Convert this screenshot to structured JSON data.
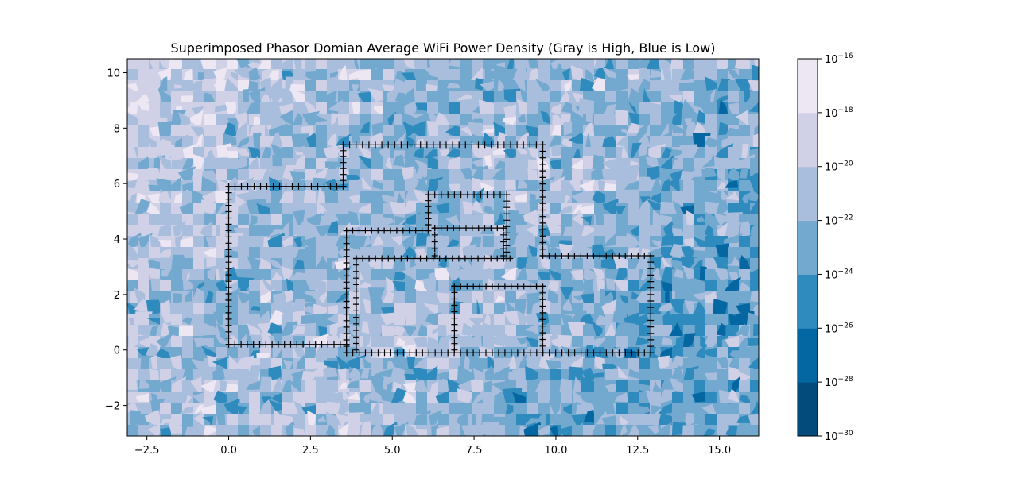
{
  "chart_data": {
    "type": "contour",
    "title": "Superimposed Phasor Domian Average WiFi Power Density (Gray is High, Blue is Low)",
    "xlabel": "",
    "ylabel": "",
    "xlim": [
      -3.1,
      16.2
    ],
    "ylim": [
      -3.1,
      10.5
    ],
    "x_ticks": [
      -2.5,
      0.0,
      2.5,
      5.0,
      7.5,
      10.0,
      12.5,
      15.0
    ],
    "x_tick_labels": [
      "−2.5",
      "0.0",
      "2.5",
      "5.0",
      "7.5",
      "10.0",
      "12.5",
      "15.0"
    ],
    "y_ticks": [
      -2,
      0,
      2,
      4,
      6,
      8,
      10
    ],
    "y_tick_labels": [
      "−2",
      "0",
      "2",
      "4",
      "6",
      "8",
      "10"
    ],
    "colorbar": {
      "scale": "log",
      "levels_exponent": [
        -30,
        -28,
        -26,
        -24,
        -22,
        -20,
        -18,
        -16
      ],
      "tick_label_base": "10",
      "tick_label_exponents": [
        "−30",
        "−28",
        "−26",
        "−24",
        "−22",
        "−20",
        "−18",
        "−16"
      ],
      "band_colors": [
        "#034b7b",
        "#0567a2",
        "#2f8bbe",
        "#74a9cf",
        "#a9bddd",
        "#d0d1e6",
        "#ece7f2"
      ]
    },
    "walls": [
      {
        "name": "outer-left",
        "points": [
          [
            0,
            0.2
          ],
          [
            0,
            5.9
          ],
          [
            3.5,
            5.9
          ],
          [
            3.5,
            7.4
          ],
          [
            9.6,
            7.4
          ],
          [
            9.6,
            3.4
          ],
          [
            12.9,
            3.4
          ],
          [
            12.9,
            -0.1
          ],
          [
            3.6,
            -0.1
          ],
          [
            3.6,
            0.2
          ],
          [
            0,
            0.2
          ]
        ]
      },
      {
        "name": "inner-wall",
        "points": [
          [
            3.6,
            -0.1
          ],
          [
            3.6,
            4.3
          ],
          [
            6.1,
            4.3
          ]
        ]
      },
      {
        "name": "corridor",
        "points": [
          [
            3.9,
            0.0
          ],
          [
            3.9,
            3.3
          ],
          [
            8.6,
            3.3
          ]
        ]
      },
      {
        "name": "room-upper",
        "points": [
          [
            6.1,
            4.3
          ],
          [
            6.1,
            5.6
          ],
          [
            8.5,
            5.6
          ],
          [
            8.5,
            3.3
          ]
        ]
      },
      {
        "name": "room-inner",
        "points": [
          [
            6.3,
            3.4
          ],
          [
            6.3,
            4.4
          ],
          [
            8.4,
            4.4
          ],
          [
            8.4,
            3.4
          ]
        ]
      },
      {
        "name": "room-lower",
        "points": [
          [
            6.9,
            0.0
          ],
          [
            6.9,
            2.3
          ],
          [
            9.6,
            2.3
          ],
          [
            9.6,
            -0.1
          ]
        ]
      }
    ]
  }
}
